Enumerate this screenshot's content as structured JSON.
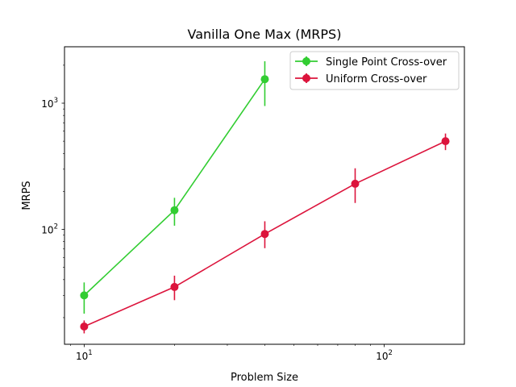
{
  "chart_data": {
    "type": "line",
    "title": "Vanilla One Max (MRPS)",
    "xlabel": "Problem Size",
    "ylabel": "MRPS",
    "x_scale": "log",
    "y_scale": "log",
    "xlim": [
      8.6,
      185
    ],
    "ylim": [
      12.3,
      2800
    ],
    "grid": false,
    "legend_position": "top-right",
    "x_major_ticks": [
      10,
      100
    ],
    "x_major_tick_labels": [
      "10",
      "10"
    ],
    "x_major_tick_exponents": [
      "1",
      "2"
    ],
    "y_major_ticks": [
      100,
      1000
    ],
    "y_major_tick_labels": [
      "10",
      "10"
    ],
    "y_major_tick_exponents": [
      "2",
      "3"
    ],
    "series": [
      {
        "name": "Single Point Cross-over",
        "color": "#32cd32",
        "x": [
          10,
          20,
          40
        ],
        "y": [
          30,
          142,
          1550
        ],
        "err_low": [
          21.5,
          107,
          950
        ],
        "err_high": [
          38,
          178,
          2150
        ]
      },
      {
        "name": "Uniform Cross-over",
        "color": "#dc143c",
        "x": [
          10,
          20,
          40,
          80,
          160
        ],
        "y": [
          17,
          35,
          92,
          230,
          500
        ],
        "err_low": [
          15,
          27.5,
          71,
          162,
          425
        ],
        "err_high": [
          19,
          43,
          116,
          305,
          575
        ]
      }
    ]
  }
}
